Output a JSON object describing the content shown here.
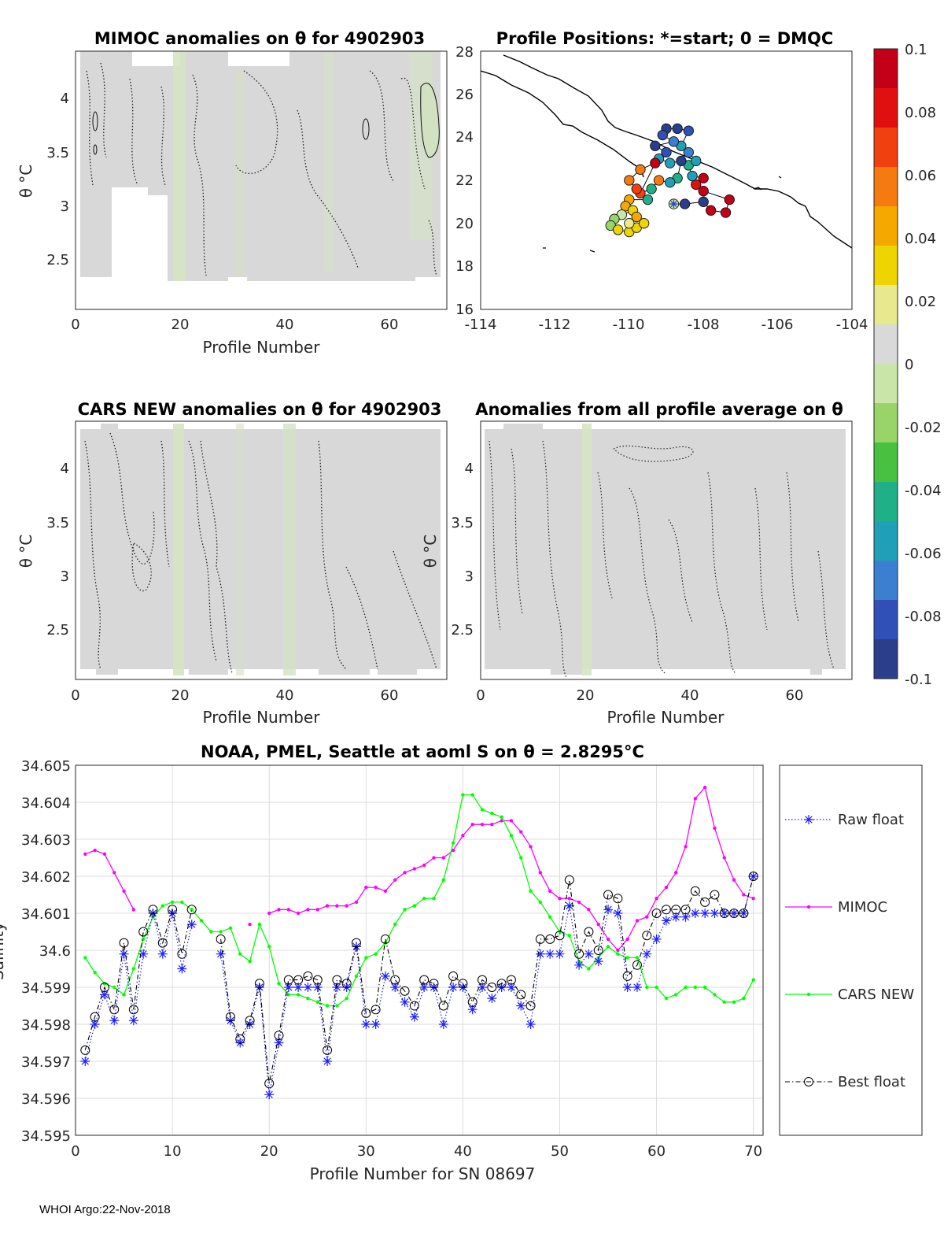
{
  "footer": "WHOI Argo:22-Nov-2018",
  "colorbar": {
    "ticks": [
      "0.1",
      "0.08",
      "0.06",
      "0.04",
      "0.02",
      "0",
      "-0.02",
      "-0.04",
      "-0.06",
      "-0.08",
      "-0.1"
    ],
    "colors": [
      "#c40018",
      "#e01010",
      "#f04010",
      "#f57a10",
      "#f5a800",
      "#eed400",
      "#e8e88c",
      "#d9d9d9",
      "#c9e6a8",
      "#98d468",
      "#48c040",
      "#20b088",
      "#20a0b8",
      "#3a7fd0",
      "#3050b8",
      "#2a3e8c"
    ]
  },
  "chart_data": [
    {
      "id": "mimoc",
      "type": "heatmap",
      "title": "MIMOC anomalies on θ  for 4902903",
      "xlabel": "Profile Number",
      "ylabel": "θ °C",
      "xlim": [
        0,
        70
      ],
      "ylim": [
        2.05,
        4.45
      ],
      "xticks": [
        "0",
        "20",
        "40",
        "60"
      ],
      "yticks": [
        "2.5",
        "3",
        "3.5",
        "4"
      ]
    },
    {
      "id": "positions",
      "type": "scatter",
      "title": "Profile Positions: *=start; 0 = DMQC",
      "xlim": [
        -114,
        -104
      ],
      "ylim": [
        16,
        28
      ],
      "xticks": [
        "-114",
        "-112",
        "-110",
        "-108",
        "-106",
        "-104"
      ],
      "yticks": [
        "16",
        "18",
        "20",
        "22",
        "24",
        "26",
        "28"
      ],
      "points": [
        {
          "lon": -108.8,
          "lat": 20.9,
          "v": 0.0
        },
        {
          "lon": -108.5,
          "lat": 20.9,
          "v": -0.09
        },
        {
          "lon": -108.0,
          "lat": 21.0,
          "v": -0.09
        },
        {
          "lon": -107.8,
          "lat": 20.6,
          "v": 0.09
        },
        {
          "lon": -107.4,
          "lat": 20.5,
          "v": 0.09
        },
        {
          "lon": -107.3,
          "lat": 21.1,
          "v": 0.1
        },
        {
          "lon": -108.0,
          "lat": 21.5,
          "v": 0.09
        },
        {
          "lon": -108.2,
          "lat": 21.8,
          "v": 0.08
        },
        {
          "lon": -108.0,
          "lat": 22.1,
          "v": 0.09
        },
        {
          "lon": -108.3,
          "lat": 22.2,
          "v": -0.05
        },
        {
          "lon": -108.4,
          "lat": 22.7,
          "v": -0.04
        },
        {
          "lon": -108.2,
          "lat": 22.9,
          "v": -0.05
        },
        {
          "lon": -108.4,
          "lat": 23.3,
          "v": -0.07
        },
        {
          "lon": -108.6,
          "lat": 23.6,
          "v": -0.06
        },
        {
          "lon": -108.4,
          "lat": 24.3,
          "v": -0.08
        },
        {
          "lon": -108.7,
          "lat": 24.4,
          "v": -0.09
        },
        {
          "lon": -109.0,
          "lat": 24.4,
          "v": -0.09
        },
        {
          "lon": -109.1,
          "lat": 24.1,
          "v": -0.08
        },
        {
          "lon": -108.8,
          "lat": 23.8,
          "v": -0.07
        },
        {
          "lon": -109.3,
          "lat": 23.6,
          "v": -0.09
        },
        {
          "lon": -109.0,
          "lat": 23.3,
          "v": -0.08
        },
        {
          "lon": -109.2,
          "lat": 23.0,
          "v": -0.06
        },
        {
          "lon": -108.9,
          "lat": 22.8,
          "v": -0.05
        },
        {
          "lon": -108.6,
          "lat": 22.9,
          "v": -0.1
        },
        {
          "lon": -108.7,
          "lat": 22.1,
          "v": -0.04
        },
        {
          "lon": -108.9,
          "lat": 21.9,
          "v": -0.05
        },
        {
          "lon": -109.2,
          "lat": 22.0,
          "v": 0.06
        },
        {
          "lon": -109.4,
          "lat": 21.6,
          "v": -0.04
        },
        {
          "lon": -109.7,
          "lat": 21.4,
          "v": 0.07
        },
        {
          "lon": -109.3,
          "lat": 22.8,
          "v": 0.09
        },
        {
          "lon": -109.7,
          "lat": 22.5,
          "v": 0.06
        },
        {
          "lon": -110.0,
          "lat": 22.0,
          "v": 0.06
        },
        {
          "lon": -109.8,
          "lat": 21.6,
          "v": 0.07
        },
        {
          "lon": -109.5,
          "lat": 21.1,
          "v": -0.04
        },
        {
          "lon": -110.0,
          "lat": 21.1,
          "v": 0.05
        },
        {
          "lon": -110.1,
          "lat": 20.8,
          "v": 0.04
        },
        {
          "lon": -109.9,
          "lat": 20.6,
          "v": 0.03
        },
        {
          "lon": -110.2,
          "lat": 20.4,
          "v": -0.01
        },
        {
          "lon": -110.4,
          "lat": 20.2,
          "v": -0.02
        },
        {
          "lon": -110.5,
          "lat": 19.9,
          "v": -0.02
        },
        {
          "lon": -110.3,
          "lat": 19.7,
          "v": 0.03
        },
        {
          "lon": -110.0,
          "lat": 19.6,
          "v": 0.03
        },
        {
          "lon": -109.8,
          "lat": 19.8,
          "v": 0.035
        },
        {
          "lon": -109.6,
          "lat": 20.0,
          "v": 0.03
        },
        {
          "lon": -109.8,
          "lat": 20.3,
          "v": 0.04
        },
        {
          "lon": -110.0,
          "lat": 20.0,
          "v": 0.02
        }
      ]
    },
    {
      "id": "cars",
      "type": "heatmap",
      "title": "CARS NEW anomalies on θ for 4902903",
      "xlabel": "Profile Number",
      "ylabel": "θ °C",
      "xlim": [
        0,
        70
      ],
      "ylim": [
        2.05,
        4.45
      ],
      "xticks": [
        "0",
        "20",
        "40",
        "60"
      ],
      "yticks": [
        "2.5",
        "3",
        "3.5",
        "4"
      ]
    },
    {
      "id": "allavg",
      "type": "heatmap",
      "title": "Anomalies from all profile average on θ",
      "xlabel": "Profile Number",
      "ylabel": "θ °C",
      "xlim": [
        0,
        70
      ],
      "ylim": [
        2.05,
        4.45
      ],
      "xticks": [
        "0",
        "20",
        "40",
        "60"
      ],
      "yticks": [
        "2.5",
        "3",
        "3.5",
        "4"
      ]
    },
    {
      "id": "salinity",
      "type": "line",
      "title": "NOAA, PMEL, Seattle at aoml S on θ = 2.8295°C",
      "xlabel": "Profile Number for SN 08697",
      "ylabel": "Salinity",
      "xlim": [
        0,
        71
      ],
      "ylim": [
        34.595,
        34.605
      ],
      "xticks": [
        0,
        10,
        20,
        30,
        40,
        50,
        60,
        70
      ],
      "yticks": [
        "34.595",
        "34.596",
        "34.597",
        "34.598",
        "34.599",
        "34.6",
        "34.601",
        "34.602",
        "34.603",
        "34.604",
        "34.605"
      ],
      "legend": [
        "Raw float",
        "MIMOC",
        "CARS NEW",
        "Best float"
      ],
      "x": [
        1,
        2,
        3,
        4,
        5,
        6,
        7,
        8,
        9,
        10,
        11,
        12,
        13,
        14,
        15,
        16,
        17,
        18,
        19,
        20,
        21,
        22,
        23,
        24,
        25,
        26,
        27,
        28,
        29,
        30,
        31,
        32,
        33,
        34,
        35,
        36,
        37,
        38,
        39,
        40,
        41,
        42,
        43,
        44,
        45,
        46,
        47,
        48,
        49,
        50,
        51,
        52,
        53,
        54,
        55,
        56,
        57,
        58,
        59,
        60,
        61,
        62,
        63,
        64,
        65,
        66,
        67,
        68,
        69,
        70
      ],
      "series": [
        {
          "name": "Raw float",
          "color": "#1f1fff",
          "values": [
            34.597,
            34.598,
            34.5988,
            34.5981,
            34.5999,
            34.5981,
            34.5999,
            34.601,
            34.5999,
            34.601,
            34.5995,
            34.6007,
            null,
            null,
            34.5999,
            34.5981,
            34.5975,
            34.598,
            34.599,
            34.5961,
            34.5975,
            34.599,
            34.599,
            34.599,
            34.599,
            34.597,
            34.599,
            34.599,
            34.6001,
            34.598,
            34.598,
            34.5993,
            34.599,
            34.5986,
            34.5982,
            34.599,
            34.599,
            34.598,
            34.599,
            34.599,
            34.5984,
            34.599,
            34.5987,
            34.599,
            34.599,
            34.5985,
            34.598,
            34.5999,
            34.5999,
            34.5999,
            34.6012,
            34.5996,
            34.5999,
            34.5997,
            34.6011,
            34.601,
            34.599,
            34.599,
            34.5999,
            34.6003,
            34.6008,
            34.6009,
            34.6009,
            34.601,
            34.601,
            34.601,
            34.601,
            34.601,
            34.601,
            34.602
          ]
        },
        {
          "name": "MIMOC",
          "color": "#ff00ff",
          "values": [
            34.6026,
            34.6027,
            34.6026,
            34.6021,
            34.6016,
            34.6011,
            null,
            null,
            null,
            null,
            null,
            null,
            null,
            null,
            null,
            null,
            null,
            34.6007,
            null,
            34.601,
            34.6011,
            34.6011,
            34.601,
            34.6011,
            34.6011,
            34.6012,
            34.6012,
            34.6012,
            34.6013,
            34.6017,
            34.6017,
            34.6016,
            34.6019,
            34.6021,
            34.6022,
            34.6023,
            34.6025,
            34.6025,
            34.6027,
            34.6031,
            34.6034,
            34.6034,
            34.6034,
            34.6035,
            34.6035,
            34.6032,
            34.6028,
            34.6021,
            34.6016,
            34.6014,
            34.6014,
            34.6013,
            34.6011,
            34.6007,
            34.6003,
            34.6,
            34.6003,
            34.6008,
            34.6009,
            34.6014,
            34.6017,
            34.6021,
            34.6028,
            34.6041,
            34.6044,
            34.6033,
            34.6025,
            34.6019,
            34.6015,
            34.6014
          ]
        },
        {
          "name": "CARS NEW",
          "color": "#00ff00",
          "values": [
            34.5998,
            34.5994,
            34.5991,
            34.599,
            34.5988,
            34.5995,
            34.6003,
            34.6009,
            34.6012,
            34.6013,
            34.6013,
            34.6011,
            34.6008,
            34.6005,
            34.6005,
            34.6006,
            34.5999,
            34.5997,
            34.6007,
            34.6001,
            34.5991,
            34.5988,
            34.5988,
            34.5987,
            34.5986,
            34.5985,
            34.5985,
            34.5987,
            34.5993,
            34.5998,
            34.5999,
            34.6002,
            34.6007,
            34.6011,
            34.6012,
            34.6014,
            34.6014,
            34.6019,
            34.6029,
            34.6042,
            34.6042,
            34.6038,
            34.6037,
            34.6036,
            34.6031,
            34.6025,
            34.6016,
            34.6013,
            34.6009,
            34.6005,
            34.6004,
            34.5997,
            34.5995,
            34.5998,
            34.6001,
            34.5999,
            34.5998,
            34.5998,
            34.599,
            34.599,
            34.5987,
            34.5988,
            34.599,
            34.599,
            34.599,
            34.5988,
            34.5986,
            34.5986,
            34.5987,
            34.5992
          ]
        },
        {
          "name": "Best float",
          "color": "#000000",
          "values": [
            34.5973,
            34.5982,
            34.599,
            34.5984,
            34.6002,
            34.5984,
            34.6005,
            34.6011,
            34.6002,
            34.6011,
            34.5999,
            34.6011,
            null,
            null,
            34.6003,
            34.5982,
            34.5976,
            34.5981,
            34.5991,
            34.5964,
            34.5977,
            34.5992,
            34.5992,
            34.5993,
            34.5992,
            34.5973,
            34.5992,
            34.5991,
            34.6002,
            34.5983,
            34.5984,
            34.6003,
            34.5992,
            34.5989,
            34.5985,
            34.5992,
            34.5991,
            34.5985,
            34.5993,
            34.5991,
            34.5986,
            34.5992,
            34.599,
            34.5991,
            34.5992,
            34.5988,
            34.5985,
            34.6003,
            34.6003,
            34.6004,
            34.6019,
            34.5999,
            34.6005,
            34.6,
            34.6015,
            34.6014,
            34.5993,
            34.5996,
            34.6004,
            34.601,
            34.6011,
            34.6011,
            34.6011,
            34.6016,
            34.6013,
            34.6015,
            34.601,
            34.601,
            34.601,
            34.602
          ]
        }
      ]
    }
  ]
}
